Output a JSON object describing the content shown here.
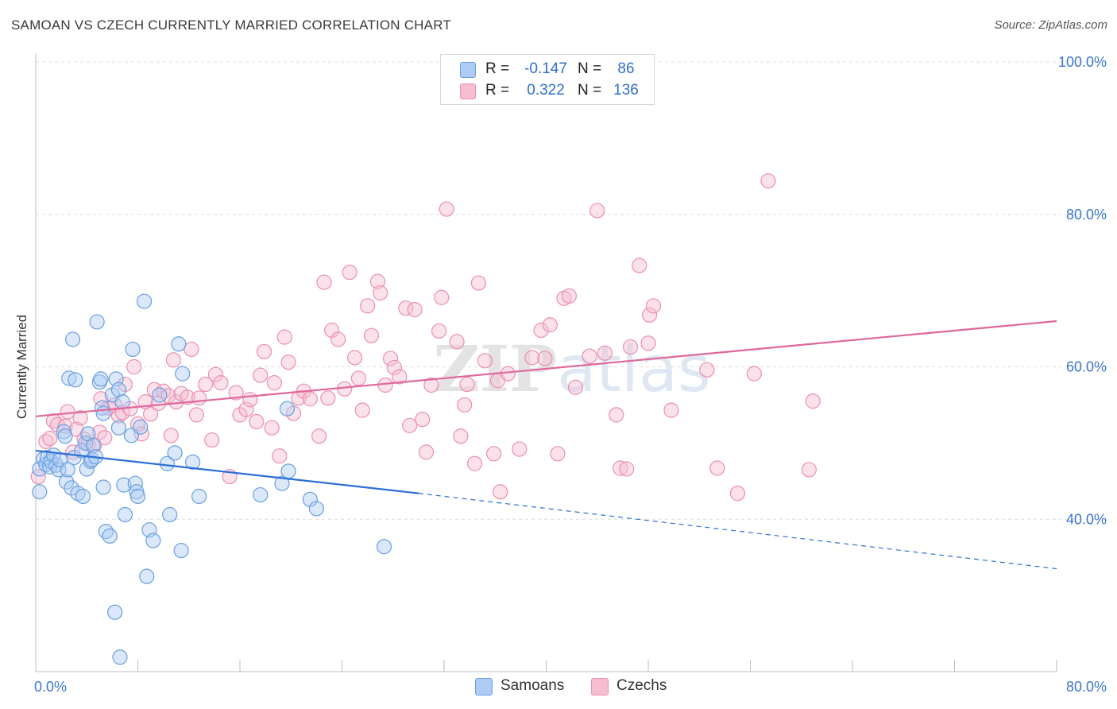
{
  "header": {
    "title": "SAMOAN VS CZECH CURRENTLY MARRIED CORRELATION CHART",
    "source": "Source: ZipAtlas.com"
  },
  "legend": {
    "rows": [
      {
        "r_label": "R =",
        "r_value": "-0.147",
        "n_label": "N =",
        "n_value": "86"
      },
      {
        "r_label": "R =",
        "r_value": "0.322",
        "n_label": "N =",
        "n_value": "136"
      }
    ],
    "bottom": [
      {
        "label": "Samoans"
      },
      {
        "label": "Czechs"
      }
    ]
  },
  "colors": {
    "samoan_fill": "#aecbf4",
    "samoan_stroke": "#6a9fe0",
    "samoan_line": "#2b6fd6",
    "czech_fill": "#f6bcd0",
    "czech_stroke": "#ea8fb0",
    "czech_line": "#e0679a",
    "axis_text": "#3b75cc",
    "grid": "#dcdcdc"
  },
  "chart_data": {
    "type": "scatter",
    "title": "SAMOAN VS CZECH CURRENTLY MARRIED CORRELATION CHART",
    "xlabel": "",
    "ylabel": "Currently Married",
    "xlim": [
      0,
      80
    ],
    "ylim": [
      20,
      100
    ],
    "x_tick_labels": [
      "0.0%",
      "80.0%"
    ],
    "y_tick_labels": [
      "40.0%",
      "60.0%",
      "80.0%",
      "100.0%"
    ],
    "y_ticks": [
      40,
      60,
      80,
      100
    ],
    "grid": true,
    "watermark": "ZIPatlas",
    "series": [
      {
        "name": "Samoans",
        "r": -0.147,
        "n": 86,
        "trend": {
          "x0": 0,
          "y0": 49.0,
          "x1": 30,
          "y1": 43.4,
          "dashed_to_x": 80,
          "dashed_to_y": 33.5
        },
        "points": [
          [
            0.3,
            46.6
          ],
          [
            0.3,
            43.6
          ],
          [
            0.6,
            47.9
          ],
          [
            0.8,
            47.2
          ],
          [
            0.9,
            48.1
          ],
          [
            1.1,
            46.9
          ],
          [
            1.2,
            47.6
          ],
          [
            1.4,
            48.4
          ],
          [
            1.6,
            47.1
          ],
          [
            1.8,
            46.5
          ],
          [
            1.9,
            47.8
          ],
          [
            2.2,
            51.5
          ],
          [
            2.3,
            50.9
          ],
          [
            2.4,
            44.9
          ],
          [
            2.5,
            46.5
          ],
          [
            2.6,
            58.5
          ],
          [
            2.8,
            44.1
          ],
          [
            2.9,
            63.6
          ],
          [
            3.0,
            48.1
          ],
          [
            3.1,
            58.3
          ],
          [
            3.3,
            43.4
          ],
          [
            3.6,
            49.0
          ],
          [
            3.7,
            43.0
          ],
          [
            3.9,
            50.0
          ],
          [
            4.0,
            46.6
          ],
          [
            4.1,
            51.2
          ],
          [
            4.3,
            47.6
          ],
          [
            4.4,
            47.8
          ],
          [
            4.5,
            49.7
          ],
          [
            4.7,
            48.2
          ],
          [
            4.8,
            65.9
          ],
          [
            5.0,
            58.0
          ],
          [
            5.1,
            58.4
          ],
          [
            5.2,
            54.6
          ],
          [
            5.3,
            44.2
          ],
          [
            5.3,
            53.9
          ],
          [
            5.5,
            38.4
          ],
          [
            5.8,
            37.8
          ],
          [
            6.0,
            56.3
          ],
          [
            6.2,
            27.8
          ],
          [
            6.3,
            58.4
          ],
          [
            6.5,
            52.0
          ],
          [
            6.5,
            57.0
          ],
          [
            6.6,
            21.9
          ],
          [
            6.8,
            55.4
          ],
          [
            6.9,
            44.5
          ],
          [
            7.0,
            40.6
          ],
          [
            7.5,
            51.0
          ],
          [
            7.6,
            62.3
          ],
          [
            7.8,
            44.7
          ],
          [
            7.9,
            43.6
          ],
          [
            8.0,
            43.0
          ],
          [
            8.2,
            52.1
          ],
          [
            8.5,
            68.6
          ],
          [
            8.7,
            32.5
          ],
          [
            8.9,
            38.6
          ],
          [
            9.2,
            37.2
          ],
          [
            9.7,
            56.3
          ],
          [
            10.3,
            47.3
          ],
          [
            10.5,
            40.6
          ],
          [
            10.9,
            48.7
          ],
          [
            11.2,
            63.0
          ],
          [
            11.4,
            35.9
          ],
          [
            11.5,
            59.1
          ],
          [
            12.3,
            47.5
          ],
          [
            12.8,
            43.0
          ],
          [
            17.6,
            43.2
          ],
          [
            19.3,
            44.7
          ],
          [
            19.7,
            54.5
          ],
          [
            19.8,
            46.3
          ],
          [
            21.5,
            42.6
          ],
          [
            22.0,
            41.4
          ],
          [
            27.3,
            36.4
          ]
        ]
      },
      {
        "name": "Czechs",
        "r": 0.322,
        "n": 136,
        "trend": {
          "x0": 0,
          "y0": 53.5,
          "x1": 80,
          "y1": 66.0
        },
        "points": [
          [
            0.2,
            45.6
          ],
          [
            0.8,
            50.2
          ],
          [
            1.1,
            50.6
          ],
          [
            1.4,
            52.9
          ],
          [
            1.7,
            52.4
          ],
          [
            2.3,
            52.2
          ],
          [
            2.5,
            54.1
          ],
          [
            2.9,
            48.8
          ],
          [
            3.2,
            51.8
          ],
          [
            3.5,
            53.3
          ],
          [
            3.8,
            50.5
          ],
          [
            4.1,
            49.9
          ],
          [
            4.6,
            49.7
          ],
          [
            5.0,
            51.4
          ],
          [
            5.1,
            55.8
          ],
          [
            5.4,
            50.7
          ],
          [
            5.7,
            54.6
          ],
          [
            6.2,
            55.0
          ],
          [
            6.5,
            53.6
          ],
          [
            6.8,
            54.0
          ],
          [
            7.0,
            57.7
          ],
          [
            7.4,
            54.5
          ],
          [
            7.7,
            60.0
          ],
          [
            8.0,
            52.5
          ],
          [
            8.3,
            51.2
          ],
          [
            8.6,
            55.4
          ],
          [
            9.0,
            53.8
          ],
          [
            9.3,
            57.0
          ],
          [
            9.6,
            55.2
          ],
          [
            10.0,
            56.8
          ],
          [
            10.4,
            56.2
          ],
          [
            10.6,
            51.0
          ],
          [
            10.8,
            60.9
          ],
          [
            11.0,
            55.4
          ],
          [
            11.4,
            56.5
          ],
          [
            11.9,
            56.0
          ],
          [
            12.2,
            62.3
          ],
          [
            12.6,
            53.7
          ],
          [
            12.8,
            55.9
          ],
          [
            13.3,
            57.7
          ],
          [
            13.8,
            50.4
          ],
          [
            14.1,
            59.0
          ],
          [
            14.5,
            57.9
          ],
          [
            15.2,
            45.6
          ],
          [
            15.7,
            56.6
          ],
          [
            16.0,
            53.7
          ],
          [
            16.5,
            54.4
          ],
          [
            16.8,
            55.7
          ],
          [
            17.3,
            52.8
          ],
          [
            17.6,
            58.9
          ],
          [
            17.9,
            62.0
          ],
          [
            18.5,
            52.0
          ],
          [
            18.7,
            57.9
          ],
          [
            19.1,
            48.3
          ],
          [
            19.5,
            63.9
          ],
          [
            19.8,
            60.6
          ],
          [
            20.2,
            53.9
          ],
          [
            20.6,
            55.9
          ],
          [
            21.0,
            56.8
          ],
          [
            21.5,
            55.8
          ],
          [
            22.2,
            50.9
          ],
          [
            22.6,
            71.1
          ],
          [
            22.9,
            55.9
          ],
          [
            23.2,
            64.8
          ],
          [
            23.7,
            63.6
          ],
          [
            24.2,
            57.1
          ],
          [
            24.6,
            72.4
          ],
          [
            25.0,
            61.2
          ],
          [
            25.3,
            58.5
          ],
          [
            25.6,
            54.3
          ],
          [
            26.0,
            68.0
          ],
          [
            26.3,
            64.1
          ],
          [
            26.8,
            71.2
          ],
          [
            27.0,
            69.7
          ],
          [
            27.4,
            57.6
          ],
          [
            27.8,
            61.1
          ],
          [
            28.1,
            59.9
          ],
          [
            28.5,
            58.7
          ],
          [
            29.0,
            67.7
          ],
          [
            29.3,
            52.3
          ],
          [
            29.7,
            67.5
          ],
          [
            30.3,
            53.1
          ],
          [
            30.6,
            48.8
          ],
          [
            31.0,
            57.6
          ],
          [
            31.6,
            64.7
          ],
          [
            31.8,
            69.1
          ],
          [
            32.2,
            80.7
          ],
          [
            33.0,
            63.3
          ],
          [
            33.3,
            50.9
          ],
          [
            33.6,
            55.0
          ],
          [
            33.8,
            57.7
          ],
          [
            34.4,
            47.3
          ],
          [
            34.7,
            71.0
          ],
          [
            35.2,
            60.8
          ],
          [
            35.9,
            48.6
          ],
          [
            36.2,
            58.2
          ],
          [
            36.4,
            43.6
          ],
          [
            37.0,
            59.1
          ],
          [
            37.9,
            49.2
          ],
          [
            38.9,
            61.2
          ],
          [
            39.6,
            64.8
          ],
          [
            39.9,
            61.1
          ],
          [
            40.3,
            65.5
          ],
          [
            40.9,
            48.6
          ],
          [
            41.4,
            69.0
          ],
          [
            41.8,
            69.3
          ],
          [
            42.3,
            57.3
          ],
          [
            43.4,
            61.4
          ],
          [
            44.0,
            80.5
          ],
          [
            44.6,
            61.8
          ],
          [
            45.5,
            53.7
          ],
          [
            45.8,
            46.7
          ],
          [
            46.3,
            46.6
          ],
          [
            46.6,
            62.6
          ],
          [
            47.3,
            73.3
          ],
          [
            48.0,
            63.1
          ],
          [
            48.1,
            66.8
          ],
          [
            48.4,
            68.0
          ],
          [
            49.8,
            54.3
          ],
          [
            52.6,
            59.6
          ],
          [
            53.4,
            46.7
          ],
          [
            55.0,
            43.4
          ],
          [
            56.3,
            59.1
          ],
          [
            57.4,
            84.4
          ],
          [
            60.6,
            46.5
          ],
          [
            60.9,
            55.5
          ]
        ]
      }
    ]
  }
}
